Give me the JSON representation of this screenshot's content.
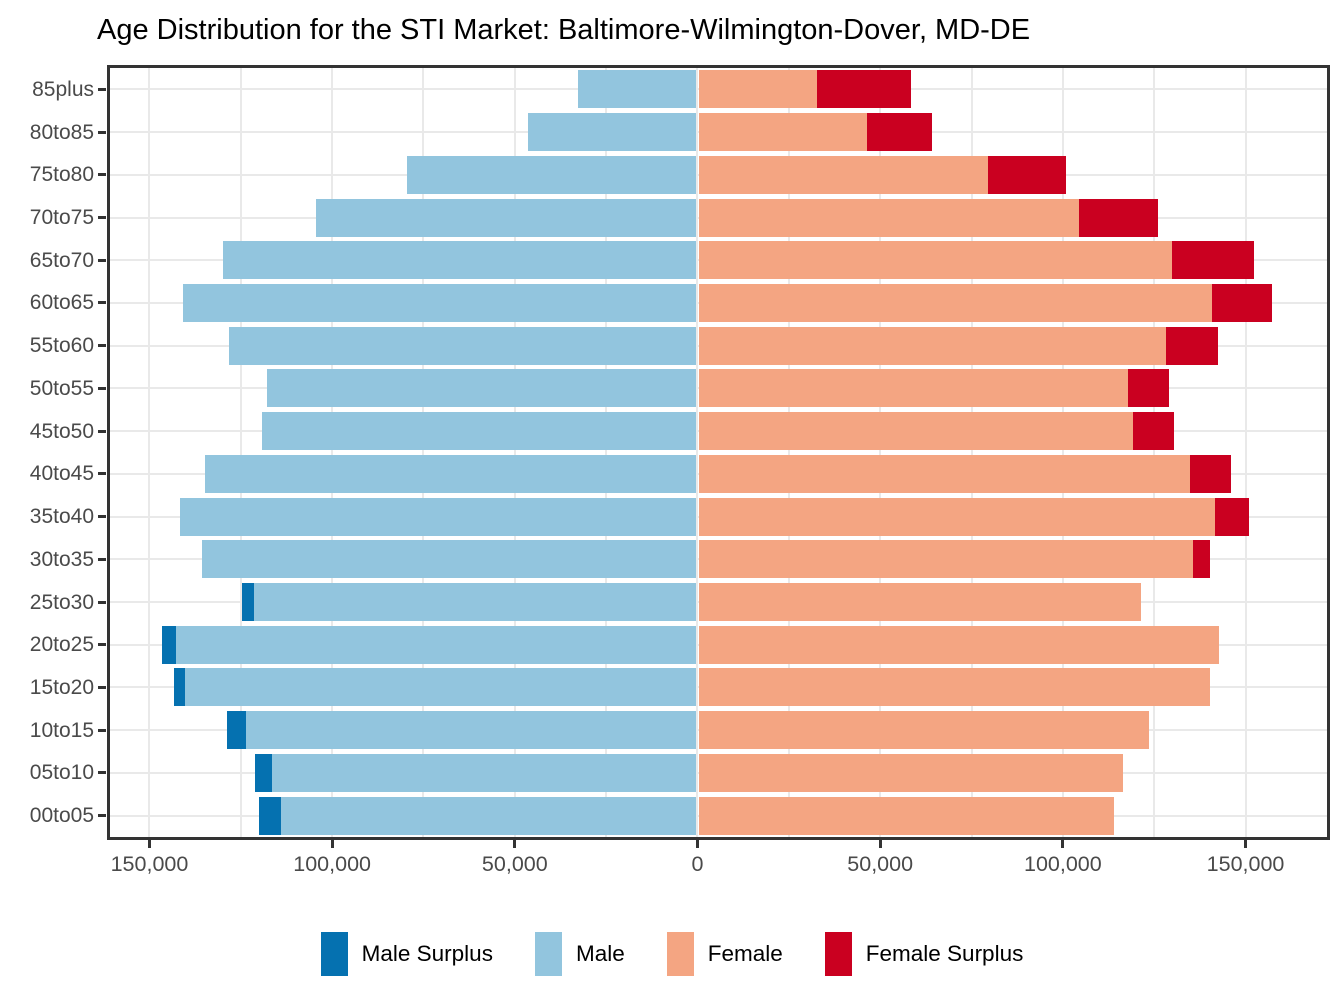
{
  "title": "Age Distribution for the STI Market: Baltimore-Wilmington-Dover, MD-DE",
  "colors": {
    "male_surplus": "#0571b0",
    "male": "#92c5de",
    "female": "#f4a582",
    "female_surplus": "#ca0020",
    "grid": "#e9e9e9",
    "panel_border": "#333333",
    "axis_text": "#4a4a4a",
    "title_text": "#000000"
  },
  "legend": {
    "items": [
      {
        "label": "Male Surplus",
        "color_key": "male_surplus"
      },
      {
        "label": "Male",
        "color_key": "male"
      },
      {
        "label": "Female",
        "color_key": "female"
      },
      {
        "label": "Female Surplus",
        "color_key": "female_surplus"
      }
    ]
  },
  "chart_data": {
    "type": "bar",
    "subtype": "population-pyramid-diverging",
    "title": "Age Distribution for the STI Market: Baltimore-Wilmington-Dover, MD-DE",
    "xlabel": "",
    "ylabel": "",
    "grid": "on",
    "legend_position": "bottom",
    "categories_top_to_bottom": [
      "85plus",
      "80to85",
      "75to80",
      "70to75",
      "65to70",
      "60to65",
      "55to60",
      "50to55",
      "45to50",
      "40to45",
      "35to40",
      "30to35",
      "25to30",
      "20to25",
      "15to20",
      "10to15",
      "05to10",
      "00to05"
    ],
    "series": [
      {
        "name": "Male",
        "side": "left",
        "values": [
          32700,
          46400,
          79600,
          104400,
          130000,
          140800,
          128200,
          117700,
          119300,
          134800,
          141600,
          135500,
          124700,
          146500,
          143300,
          128700,
          121000,
          119900
        ]
      },
      {
        "name": "Female",
        "side": "right",
        "values": [
          58400,
          64200,
          100900,
          126100,
          152400,
          157300,
          142600,
          129100,
          130400,
          146000,
          150900,
          140200,
          121500,
          142800,
          140300,
          123700,
          116500,
          114000
        ]
      }
    ],
    "surplus_note": "Light segment = min(male,female); Male Surplus (dark blue) drawn on left when male>female; Female Surplus (dark red) drawn on right when female>male",
    "x_axis": {
      "tick_values": [
        -150000,
        -100000,
        -50000,
        0,
        50000,
        100000,
        150000
      ],
      "tick_labels": [
        "150,000",
        "100,000",
        "50,000",
        "0",
        "50,000",
        "100,000",
        "150,000"
      ],
      "minor_grid_step": 25000,
      "xlim": [
        -160800,
        172300
      ]
    }
  }
}
